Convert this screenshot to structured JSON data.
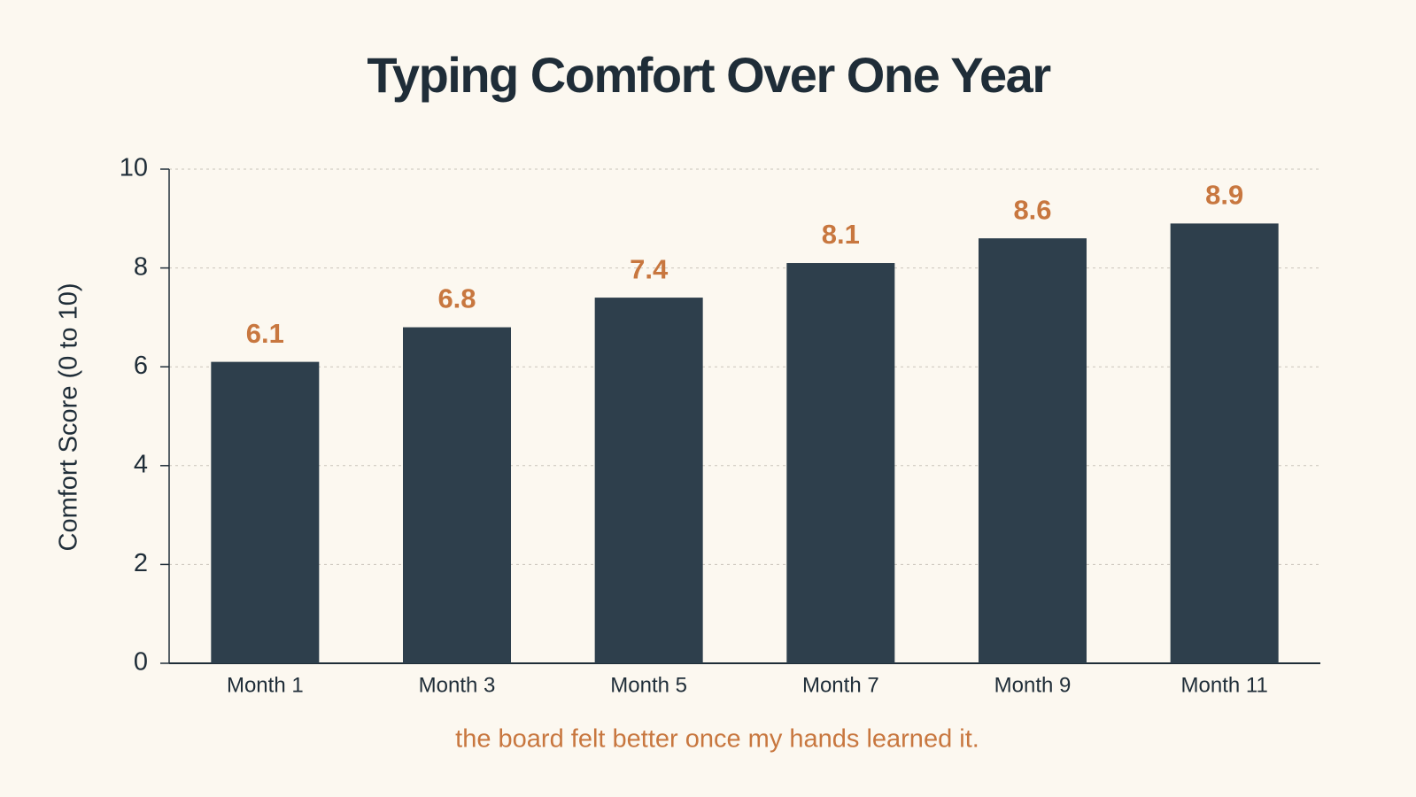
{
  "chart_data": {
    "type": "bar",
    "title": "Typing Comfort Over One Year",
    "y_label": "Comfort Score (0 to 10)",
    "categories": [
      "Month 1",
      "Month 3",
      "Month 5",
      "Month 7",
      "Month 9",
      "Month 11"
    ],
    "values": [
      6.1,
      6.8,
      7.4,
      8.1,
      8.6,
      8.9
    ],
    "color": "#2e3f4c",
    "label_color": "#c8773f",
    "ylim": [
      0,
      10
    ],
    "yticks": [
      0,
      2,
      4,
      6,
      8,
      10
    ],
    "grid": true,
    "caption": "the board felt better once my hands learned it."
  }
}
